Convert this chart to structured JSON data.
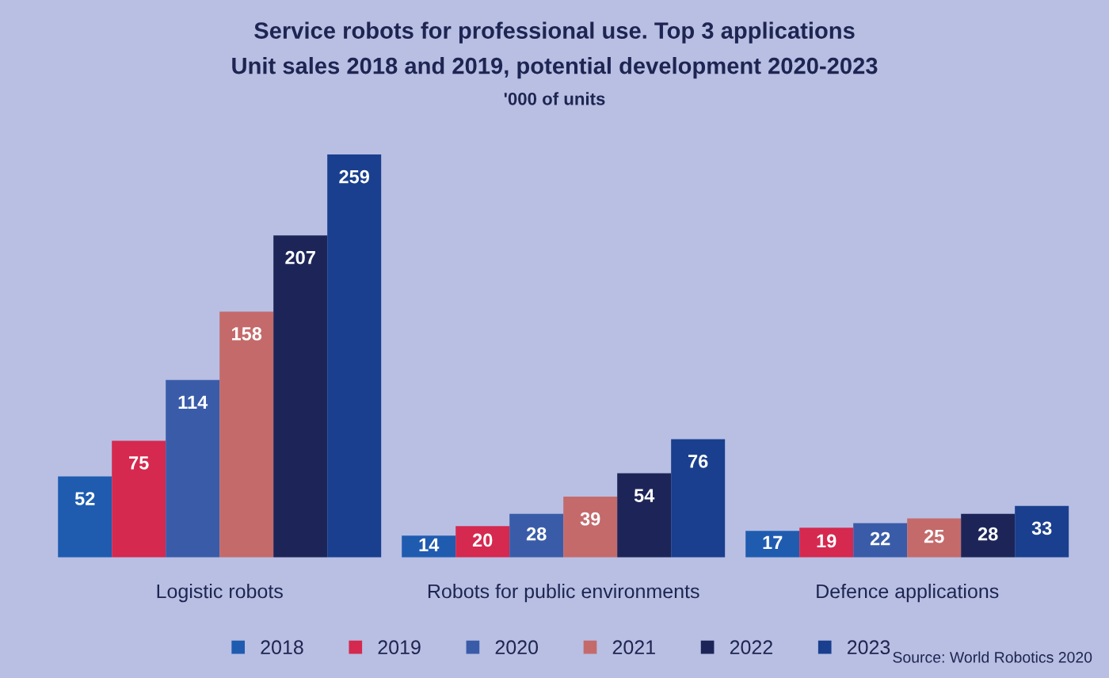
{
  "chart_data": {
    "type": "bar",
    "title": "Service robots for professional use. Top 3 applications",
    "subtitle": "Unit sales 2018 and 2019, potential development 2020-2023",
    "ylabel": "'000 of units",
    "categories": [
      "Logistic robots",
      "Robots for public environments",
      "Defence applications"
    ],
    "series": [
      {
        "name": "2018",
        "color": "#1f5cb0",
        "values": [
          52,
          14,
          17
        ]
      },
      {
        "name": "2019",
        "color": "#d5294f",
        "values": [
          75,
          20,
          19
        ]
      },
      {
        "name": "2020",
        "color": "#3a5ca8",
        "values": [
          114,
          28,
          22
        ]
      },
      {
        "name": "2021",
        "color": "#c46a6b",
        "values": [
          158,
          39,
          25
        ]
      },
      {
        "name": "2022",
        "color": "#1d2558",
        "values": [
          207,
          54,
          28
        ]
      },
      {
        "name": "2023",
        "color": "#1a3f8e",
        "values": [
          259,
          76,
          33
        ]
      }
    ],
    "data_labels": true,
    "legend": "bottom",
    "tick_labels": "x",
    "grid": false,
    "annotations": [
      "Source: World Robotics 2020"
    ]
  }
}
